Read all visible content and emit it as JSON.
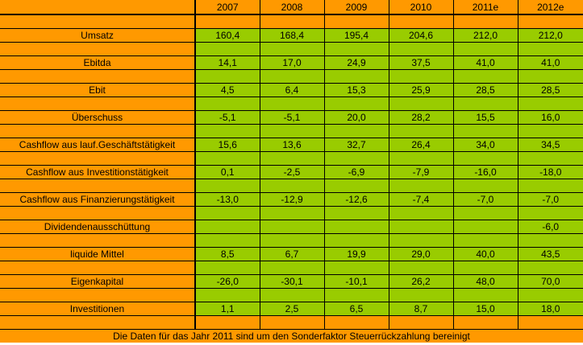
{
  "header": {
    "years": [
      "2007",
      "2008",
      "2009",
      "2010",
      "2011e",
      "2012e"
    ]
  },
  "rows": [
    {
      "label": "Umsatz",
      "values": [
        "160,4",
        "168,4",
        "195,4",
        "204,6",
        "212,0",
        "212,0"
      ]
    },
    {
      "label": "Ebitda",
      "values": [
        "14,1",
        "17,0",
        "24,9",
        "37,5",
        "41,0",
        "41,0"
      ]
    },
    {
      "label": "Ebit",
      "values": [
        "4,5",
        "6,4",
        "15,3",
        "25,9",
        "28,5",
        "28,5"
      ]
    },
    {
      "label": "Überschuss",
      "values": [
        "-5,1",
        "-5,1",
        "20,0",
        "28,2",
        "15,5",
        "16,0"
      ]
    },
    {
      "label": "Cashflow aus lauf.Geschäftstätigkeit",
      "values": [
        "15,6",
        "13,6",
        "32,7",
        "26,4",
        "34,0",
        "34,5"
      ]
    },
    {
      "label": "Cashflow aus Investitionstätigkeit",
      "values": [
        "0,1",
        "-2,5",
        "-6,9",
        "-7,9",
        "-16,0",
        "-18,0"
      ]
    },
    {
      "label": "Cashflow aus Finanzierungstätigkeit",
      "values": [
        "-13,0",
        "-12,9",
        "-12,6",
        "-7,4",
        "-7,0",
        "-7,0"
      ]
    },
    {
      "label": "Dividendenausschüttung",
      "values": [
        "",
        "",
        "",
        "",
        "",
        "-6,0"
      ]
    },
    {
      "label": "liquide Mittel",
      "values": [
        "8,5",
        "6,7",
        "19,9",
        "29,0",
        "40,0",
        "43,5"
      ]
    },
    {
      "label": "Eigenkapital",
      "values": [
        "-26,0",
        "-30,1",
        "-10,1",
        "26,2",
        "48,0",
        "70,0"
      ]
    },
    {
      "label": "Investitionen",
      "values": [
        "1,1",
        "2,5",
        "6,5",
        "8,7",
        "15,0",
        "18,0"
      ]
    }
  ],
  "footer": {
    "note": "Die Daten für das Jahr 2011 sind um den Sonderfaktor Steuerrückzahlung bereinigt"
  },
  "colors": {
    "orange": "#ff9900",
    "green": "#99cc00"
  }
}
